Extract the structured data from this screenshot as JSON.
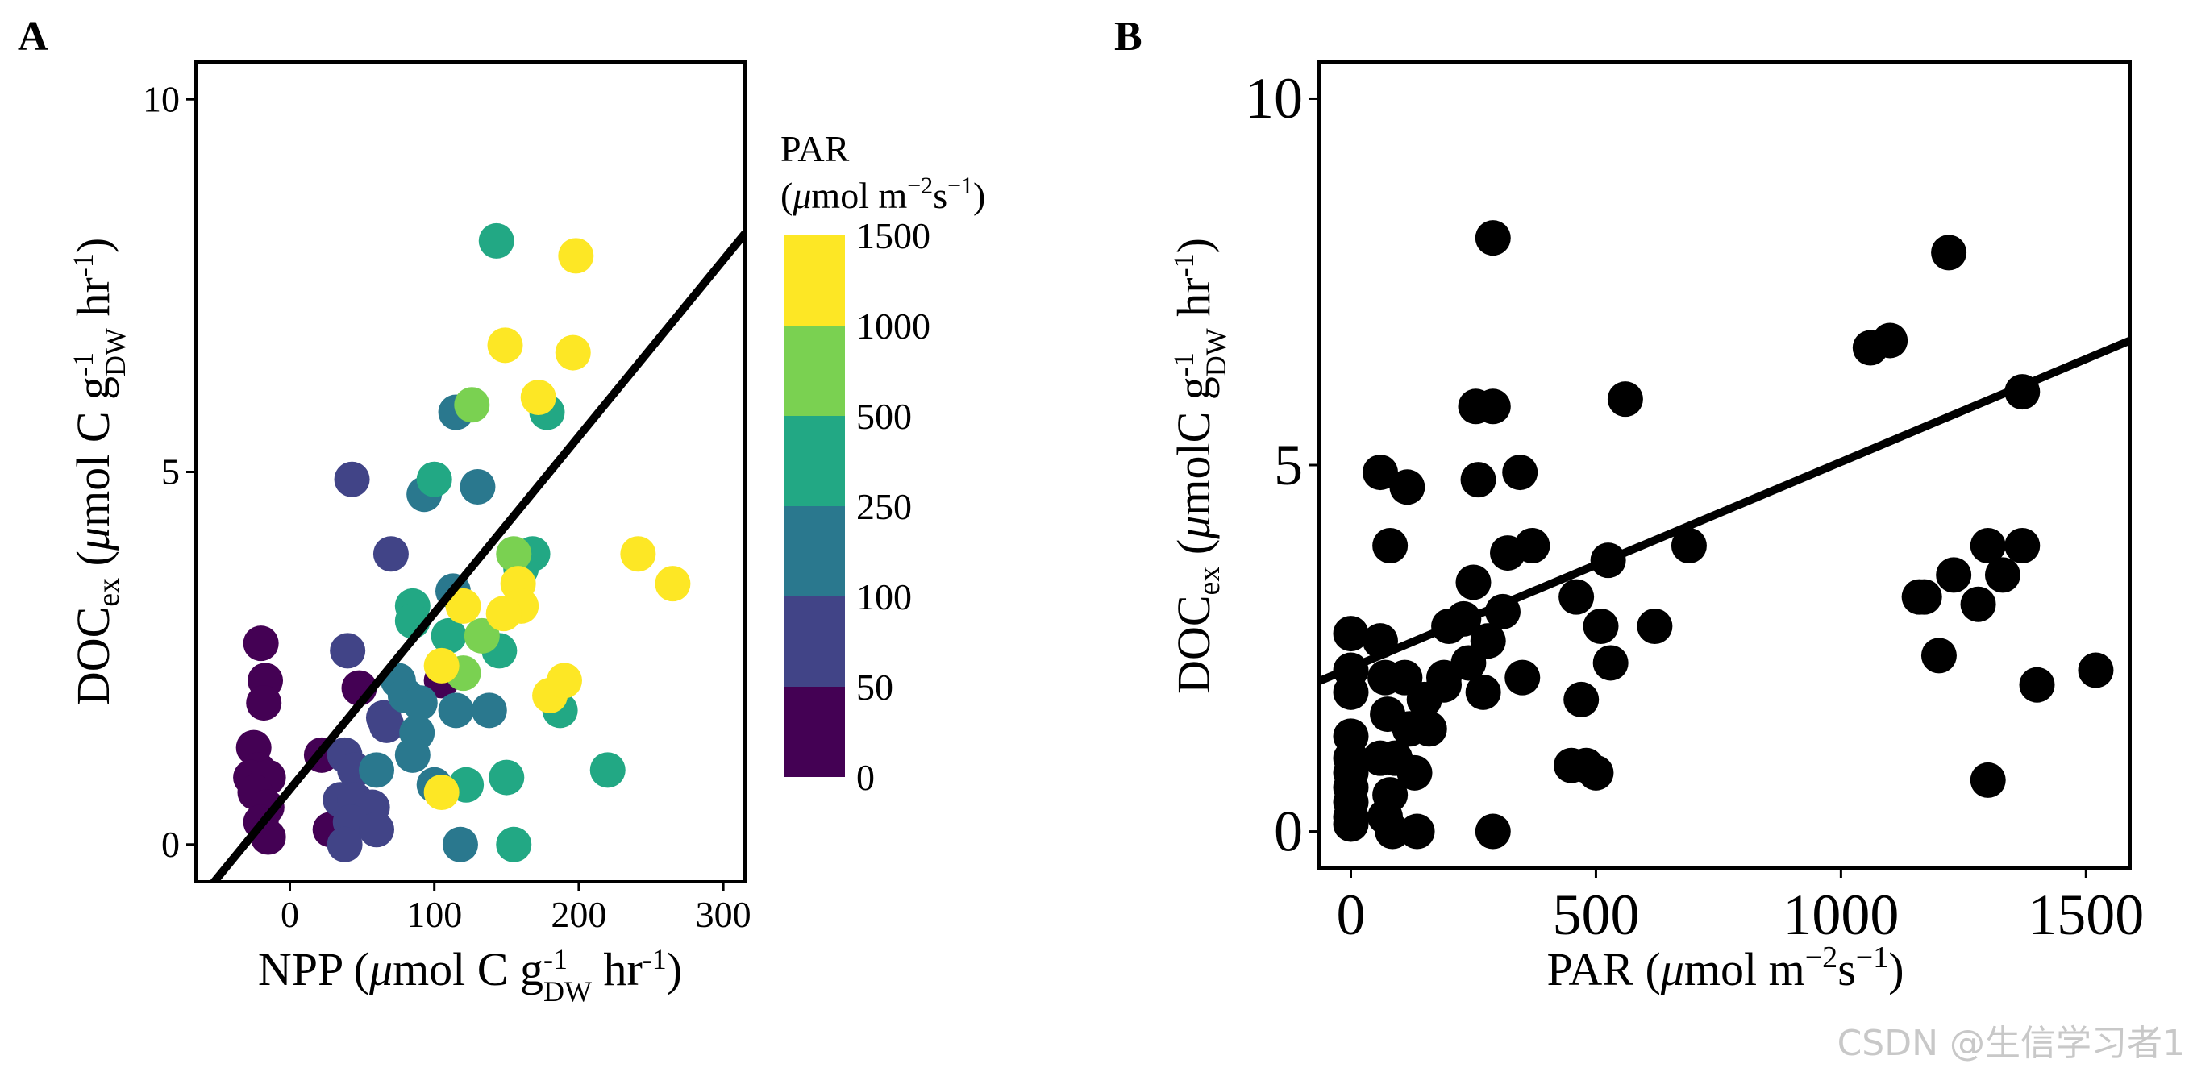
{
  "chart_data": [
    {
      "panel": "A",
      "type": "scatter",
      "xlabel": "NPP (μmol C g_DW^-1 hr^-1)",
      "ylabel": "DOC_ex (μmol C g_DW^-1 hr^-1)",
      "xlim": [
        -65,
        315
      ],
      "ylim": [
        -0.5,
        10.5
      ],
      "xticks": [
        0,
        100,
        200,
        300
      ],
      "yticks": [
        0,
        5,
        10
      ],
      "fit_line": {
        "x": [
          -65,
          315
        ],
        "y": [
          -0.8,
          8.2
        ]
      },
      "legend": {
        "title_line1": "PAR",
        "title_line2": "(μmol m−2s−1)",
        "labels": [
          "1500",
          "1000",
          "500",
          "250",
          "100",
          "50",
          "0"
        ],
        "colors": [
          "#fde725",
          "#7ad151",
          "#22a884",
          "#2a788e",
          "#414487",
          "#440154"
        ]
      },
      "color_key": {
        "c0": "#440154",
        "c1": "#414487",
        "c2": "#2a788e",
        "c3": "#22a884",
        "c4": "#7ad151",
        "c5": "#fde725"
      },
      "points": [
        {
          "x": -20,
          "y": 2.7,
          "c": "c0"
        },
        {
          "x": -17,
          "y": 2.2,
          "c": "c0"
        },
        {
          "x": -18,
          "y": 1.9,
          "c": "c0"
        },
        {
          "x": -25,
          "y": 1.3,
          "c": "c0"
        },
        {
          "x": -22,
          "y": 1.0,
          "c": "c0"
        },
        {
          "x": -27,
          "y": 0.9,
          "c": "c0"
        },
        {
          "x": -15,
          "y": 0.9,
          "c": "c0"
        },
        {
          "x": -24,
          "y": 0.7,
          "c": "c0"
        },
        {
          "x": -16,
          "y": 0.5,
          "c": "c0"
        },
        {
          "x": -20,
          "y": 0.3,
          "c": "c0"
        },
        {
          "x": -15,
          "y": 0.1,
          "c": "c0"
        },
        {
          "x": 22,
          "y": 1.2,
          "c": "c0"
        },
        {
          "x": 28,
          "y": 0.2,
          "c": "c0"
        },
        {
          "x": 48,
          "y": 2.1,
          "c": "c0"
        },
        {
          "x": 105,
          "y": 2.2,
          "c": "c0"
        },
        {
          "x": 43,
          "y": 4.9,
          "c": "c1"
        },
        {
          "x": 70,
          "y": 3.9,
          "c": "c1"
        },
        {
          "x": 40,
          "y": 2.6,
          "c": "c1"
        },
        {
          "x": 65,
          "y": 1.7,
          "c": "c1"
        },
        {
          "x": 67,
          "y": 1.6,
          "c": "c1"
        },
        {
          "x": 38,
          "y": 1.2,
          "c": "c1"
        },
        {
          "x": 45,
          "y": 1.0,
          "c": "c1"
        },
        {
          "x": 35,
          "y": 0.6,
          "c": "c1"
        },
        {
          "x": 45,
          "y": 0.6,
          "c": "c1"
        },
        {
          "x": 57,
          "y": 0.5,
          "c": "c1"
        },
        {
          "x": 42,
          "y": 0.3,
          "c": "c1"
        },
        {
          "x": 60,
          "y": 0.2,
          "c": "c1"
        },
        {
          "x": 38,
          "y": 0.0,
          "c": "c1"
        },
        {
          "x": 115,
          "y": 5.8,
          "c": "c2"
        },
        {
          "x": 130,
          "y": 4.8,
          "c": "c2"
        },
        {
          "x": 93,
          "y": 4.7,
          "c": "c2"
        },
        {
          "x": 113,
          "y": 3.4,
          "c": "c2"
        },
        {
          "x": 75,
          "y": 2.2,
          "c": "c2"
        },
        {
          "x": 80,
          "y": 2.0,
          "c": "c2"
        },
        {
          "x": 90,
          "y": 1.9,
          "c": "c2"
        },
        {
          "x": 88,
          "y": 1.5,
          "c": "c2"
        },
        {
          "x": 85,
          "y": 1.2,
          "c": "c2"
        },
        {
          "x": 115,
          "y": 1.8,
          "c": "c2"
        },
        {
          "x": 138,
          "y": 1.8,
          "c": "c2"
        },
        {
          "x": 60,
          "y": 1.0,
          "c": "c2"
        },
        {
          "x": 100,
          "y": 0.8,
          "c": "c2"
        },
        {
          "x": 118,
          "y": 0.0,
          "c": "c2"
        },
        {
          "x": 143,
          "y": 8.1,
          "c": "c3"
        },
        {
          "x": 178,
          "y": 5.8,
          "c": "c3"
        },
        {
          "x": 100,
          "y": 4.9,
          "c": "c3"
        },
        {
          "x": 168,
          "y": 3.9,
          "c": "c3"
        },
        {
          "x": 160,
          "y": 3.7,
          "c": "c3"
        },
        {
          "x": 85,
          "y": 3.2,
          "c": "c3"
        },
        {
          "x": 85,
          "y": 3.0,
          "c": "c3"
        },
        {
          "x": 110,
          "y": 2.8,
          "c": "c3"
        },
        {
          "x": 145,
          "y": 2.6,
          "c": "c3"
        },
        {
          "x": 187,
          "y": 1.8,
          "c": "c3"
        },
        {
          "x": 150,
          "y": 0.9,
          "c": "c3"
        },
        {
          "x": 122,
          "y": 0.8,
          "c": "c3"
        },
        {
          "x": 220,
          "y": 1.0,
          "c": "c3"
        },
        {
          "x": 155,
          "y": 0.0,
          "c": "c3"
        },
        {
          "x": 126,
          "y": 5.9,
          "c": "c4"
        },
        {
          "x": 155,
          "y": 3.9,
          "c": "c4"
        },
        {
          "x": 133,
          "y": 2.8,
          "c": "c4"
        },
        {
          "x": 120,
          "y": 2.3,
          "c": "c4"
        },
        {
          "x": 198,
          "y": 7.9,
          "c": "c5"
        },
        {
          "x": 149,
          "y": 6.7,
          "c": "c5"
        },
        {
          "x": 196,
          "y": 6.6,
          "c": "c5"
        },
        {
          "x": 172,
          "y": 6.0,
          "c": "c5"
        },
        {
          "x": 241,
          "y": 3.9,
          "c": "c5"
        },
        {
          "x": 265,
          "y": 3.5,
          "c": "c5"
        },
        {
          "x": 158,
          "y": 3.5,
          "c": "c5"
        },
        {
          "x": 160,
          "y": 3.2,
          "c": "c5"
        },
        {
          "x": 148,
          "y": 3.1,
          "c": "c5"
        },
        {
          "x": 120,
          "y": 3.2,
          "c": "c5"
        },
        {
          "x": 105,
          "y": 2.4,
          "c": "c5"
        },
        {
          "x": 180,
          "y": 2.0,
          "c": "c5"
        },
        {
          "x": 190,
          "y": 2.2,
          "c": "c5"
        },
        {
          "x": 105,
          "y": 0.7,
          "c": "c5"
        }
      ]
    },
    {
      "panel": "B",
      "type": "scatter",
      "xlabel": "PAR (μmol m−2s−1)",
      "ylabel": "DOC_ex (μmolC g_DW^-1 hr^-1)",
      "xlim": [
        -65,
        1590
      ],
      "ylim": [
        -0.5,
        10.5
      ],
      "xticks": [
        0,
        500,
        1000,
        1500
      ],
      "yticks": [
        0,
        5,
        10
      ],
      "fit_line": {
        "x": [
          -65,
          1590
        ],
        "y": [
          2.05,
          6.7
        ]
      },
      "point_color": "#000000",
      "points": [
        {
          "x": 0,
          "y": 2.7
        },
        {
          "x": 0,
          "y": 2.2
        },
        {
          "x": 0,
          "y": 1.9
        },
        {
          "x": 0,
          "y": 1.3
        },
        {
          "x": 0,
          "y": 1.0
        },
        {
          "x": 0,
          "y": 0.8
        },
        {
          "x": 0,
          "y": 0.6
        },
        {
          "x": 0,
          "y": 0.4
        },
        {
          "x": 0,
          "y": 0.2
        },
        {
          "x": 0,
          "y": 0.1
        },
        {
          "x": 60,
          "y": 2.6
        },
        {
          "x": 70,
          "y": 2.1
        },
        {
          "x": 60,
          "y": 1.0
        },
        {
          "x": 75,
          "y": 1.6
        },
        {
          "x": 80,
          "y": 0.5
        },
        {
          "x": 70,
          "y": 0.2
        },
        {
          "x": 85,
          "y": 0.0
        },
        {
          "x": 90,
          "y": 1.0
        },
        {
          "x": 110,
          "y": 2.1
        },
        {
          "x": 120,
          "y": 1.4
        },
        {
          "x": 130,
          "y": 0.8
        },
        {
          "x": 135,
          "y": 0.0
        },
        {
          "x": 60,
          "y": 4.9
        },
        {
          "x": 115,
          "y": 4.7
        },
        {
          "x": 80,
          "y": 3.9
        },
        {
          "x": 150,
          "y": 1.8
        },
        {
          "x": 160,
          "y": 1.4
        },
        {
          "x": 190,
          "y": 2.1
        },
        {
          "x": 190,
          "y": 2.0
        },
        {
          "x": 200,
          "y": 2.8
        },
        {
          "x": 230,
          "y": 2.9
        },
        {
          "x": 240,
          "y": 2.3
        },
        {
          "x": 250,
          "y": 3.4
        },
        {
          "x": 260,
          "y": 4.8
        },
        {
          "x": 255,
          "y": 5.8
        },
        {
          "x": 290,
          "y": 5.8
        },
        {
          "x": 290,
          "y": 8.1
        },
        {
          "x": 280,
          "y": 2.6
        },
        {
          "x": 270,
          "y": 1.9
        },
        {
          "x": 290,
          "y": 0.0
        },
        {
          "x": 310,
          "y": 3.0
        },
        {
          "x": 320,
          "y": 3.8
        },
        {
          "x": 345,
          "y": 4.9
        },
        {
          "x": 350,
          "y": 2.1
        },
        {
          "x": 370,
          "y": 3.9
        },
        {
          "x": 460,
          "y": 3.2
        },
        {
          "x": 470,
          "y": 1.8
        },
        {
          "x": 450,
          "y": 0.9
        },
        {
          "x": 480,
          "y": 0.9
        },
        {
          "x": 500,
          "y": 0.8
        },
        {
          "x": 510,
          "y": 2.8
        },
        {
          "x": 530,
          "y": 2.3
        },
        {
          "x": 525,
          "y": 3.7
        },
        {
          "x": 560,
          "y": 5.9
        },
        {
          "x": 620,
          "y": 2.8
        },
        {
          "x": 690,
          "y": 3.9
        },
        {
          "x": 1060,
          "y": 6.6
        },
        {
          "x": 1100,
          "y": 6.7
        },
        {
          "x": 1160,
          "y": 3.2
        },
        {
          "x": 1170,
          "y": 3.2
        },
        {
          "x": 1200,
          "y": 2.4
        },
        {
          "x": 1220,
          "y": 7.9
        },
        {
          "x": 1230,
          "y": 3.5
        },
        {
          "x": 1280,
          "y": 3.1
        },
        {
          "x": 1300,
          "y": 3.9
        },
        {
          "x": 1300,
          "y": 0.7
        },
        {
          "x": 1330,
          "y": 3.5
        },
        {
          "x": 1370,
          "y": 3.9
        },
        {
          "x": 1370,
          "y": 6.0
        },
        {
          "x": 1400,
          "y": 2.0
        },
        {
          "x": 1520,
          "y": 2.2
        }
      ]
    }
  ],
  "labels": {
    "panel_a": "A",
    "panel_b": "B",
    "a_xlabel_main": "NPP (",
    "a_xlabel_mu": "μ",
    "a_xlabel_unit": "mol C g",
    "a_xlabel_sup": "-1",
    "a_xlabel_sub": "DW",
    "a_xlabel_hr": " hr",
    "a_xlabel_end": ")",
    "a_ylabel_doc": "DOC",
    "a_ylabel_ex": "ex",
    "a_ylabel_open": " (",
    "a_ylabel_mu": "μ",
    "a_ylabel_unit": "mol C g",
    "a_ylabel_sup": "-1",
    "a_ylabel_sub": "DW",
    "a_ylabel_hr": " hr",
    "a_ylabel_end": ")",
    "b_xlabel_main": "PAR (",
    "b_xlabel_mu": "μ",
    "b_xlabel_unit": "mol m",
    "b_xlabel_sup1": "−2",
    "b_xlabel_s": "s",
    "b_xlabel_sup2": "−1",
    "b_xlabel_end": ")",
    "b_ylabel_doc": "DOC",
    "b_ylabel_ex": "ex",
    "b_ylabel_open": " (",
    "b_ylabel_mu": "μ",
    "b_ylabel_unit": "molC g",
    "b_ylabel_sup": "-1",
    "b_ylabel_sub": "DW",
    "b_ylabel_hr": " hr",
    "b_ylabel_end": ")",
    "watermark": "CSDN @生信学习者1"
  }
}
